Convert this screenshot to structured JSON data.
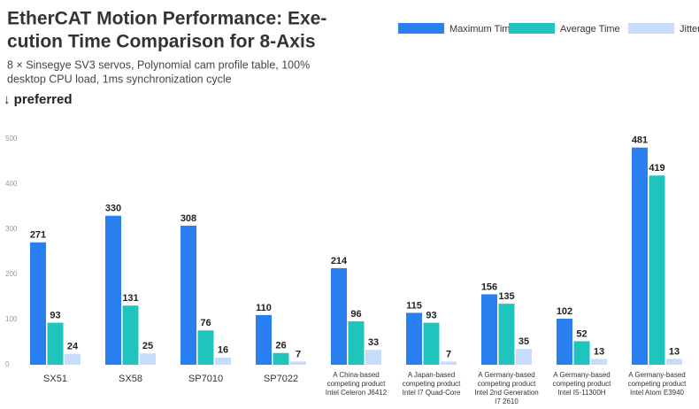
{
  "chart_data": {
    "type": "bar",
    "title": [
      "EtherCAT Motion Performance: Exe-",
      "cution Time Comparison for 8-Axis"
    ],
    "subtitle": [
      "8 × Sinsegye SV3 servos, Polynomial cam profile table, 100%",
      "desktop CPU load, 1ms synchronization cycle"
    ],
    "annotation": "↓ preferred",
    "categories": [
      "SX51",
      "SX58",
      "SP7010",
      "SP7022",
      "A China-based\ncompeting product\nIntel Celeron J6412",
      "A Japan-based\ncompeting product\nIntel I7 Quad-Core",
      "A Germany-based\ncompeting product\nIntel 2nd Generation\nI7 2610",
      "A Germany-based\ncompeting product\nIntel I5-11300H",
      "A Germany-based\ncompeting product\nIntel Atom E3940"
    ],
    "series": [
      {
        "name": "Maximum Time",
        "color": "#2a7ff0",
        "values": [
          271,
          330,
          308,
          110,
          214,
          115,
          156,
          102,
          481
        ]
      },
      {
        "name": "Average Time",
        "color": "#1fc4bc",
        "values": [
          93,
          131,
          76,
          26,
          96,
          93,
          135,
          52,
          419
        ]
      },
      {
        "name": "Jitter",
        "color": "#c6dcfa",
        "values": [
          24,
          25,
          16,
          7,
          33,
          7,
          35,
          13,
          13
        ]
      }
    ],
    "ylim": [
      0,
      500
    ],
    "yticks": [
      0,
      100,
      200,
      300,
      400,
      500
    ],
    "grid": false,
    "legend": "top-right"
  }
}
